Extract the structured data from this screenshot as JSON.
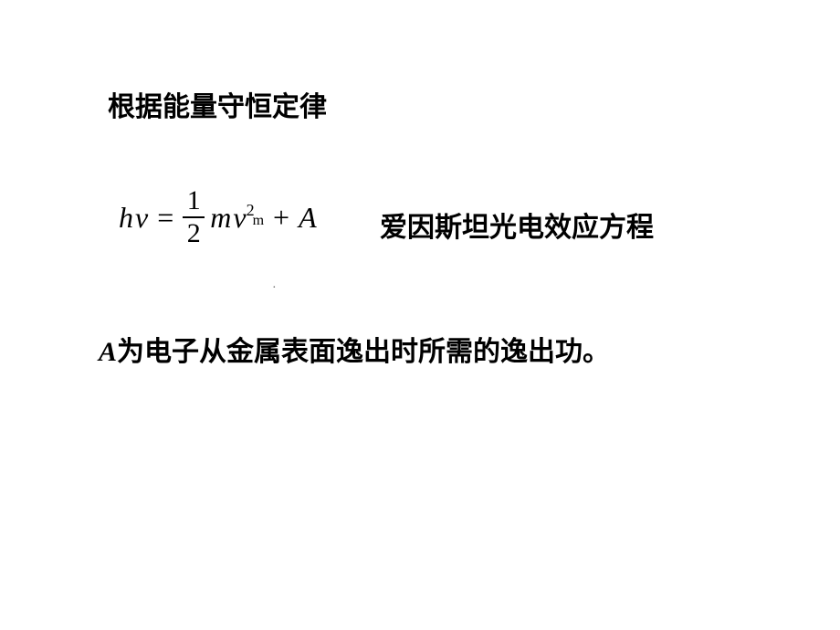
{
  "heading": "根据能量守恒定律",
  "equation": {
    "h": "h",
    "nu": "ν",
    "equals": "=",
    "frac_num": "1",
    "frac_den": "2",
    "m": "m",
    "v": "v",
    "superscript": "2",
    "subscript": "m",
    "plus": "+",
    "A": "A"
  },
  "equation_label": "爱因斯坦光电效应方程",
  "dot": "·",
  "description": {
    "A": "A",
    "text": "为电子从金属表面逸出时所需的逸出功。"
  },
  "colors": {
    "background": "#ffffff",
    "text": "#000000",
    "dot": "#666666"
  },
  "fonts": {
    "chinese": "SimSun",
    "math": "Times New Roman",
    "heading_size": 30,
    "equation_size": 32
  }
}
